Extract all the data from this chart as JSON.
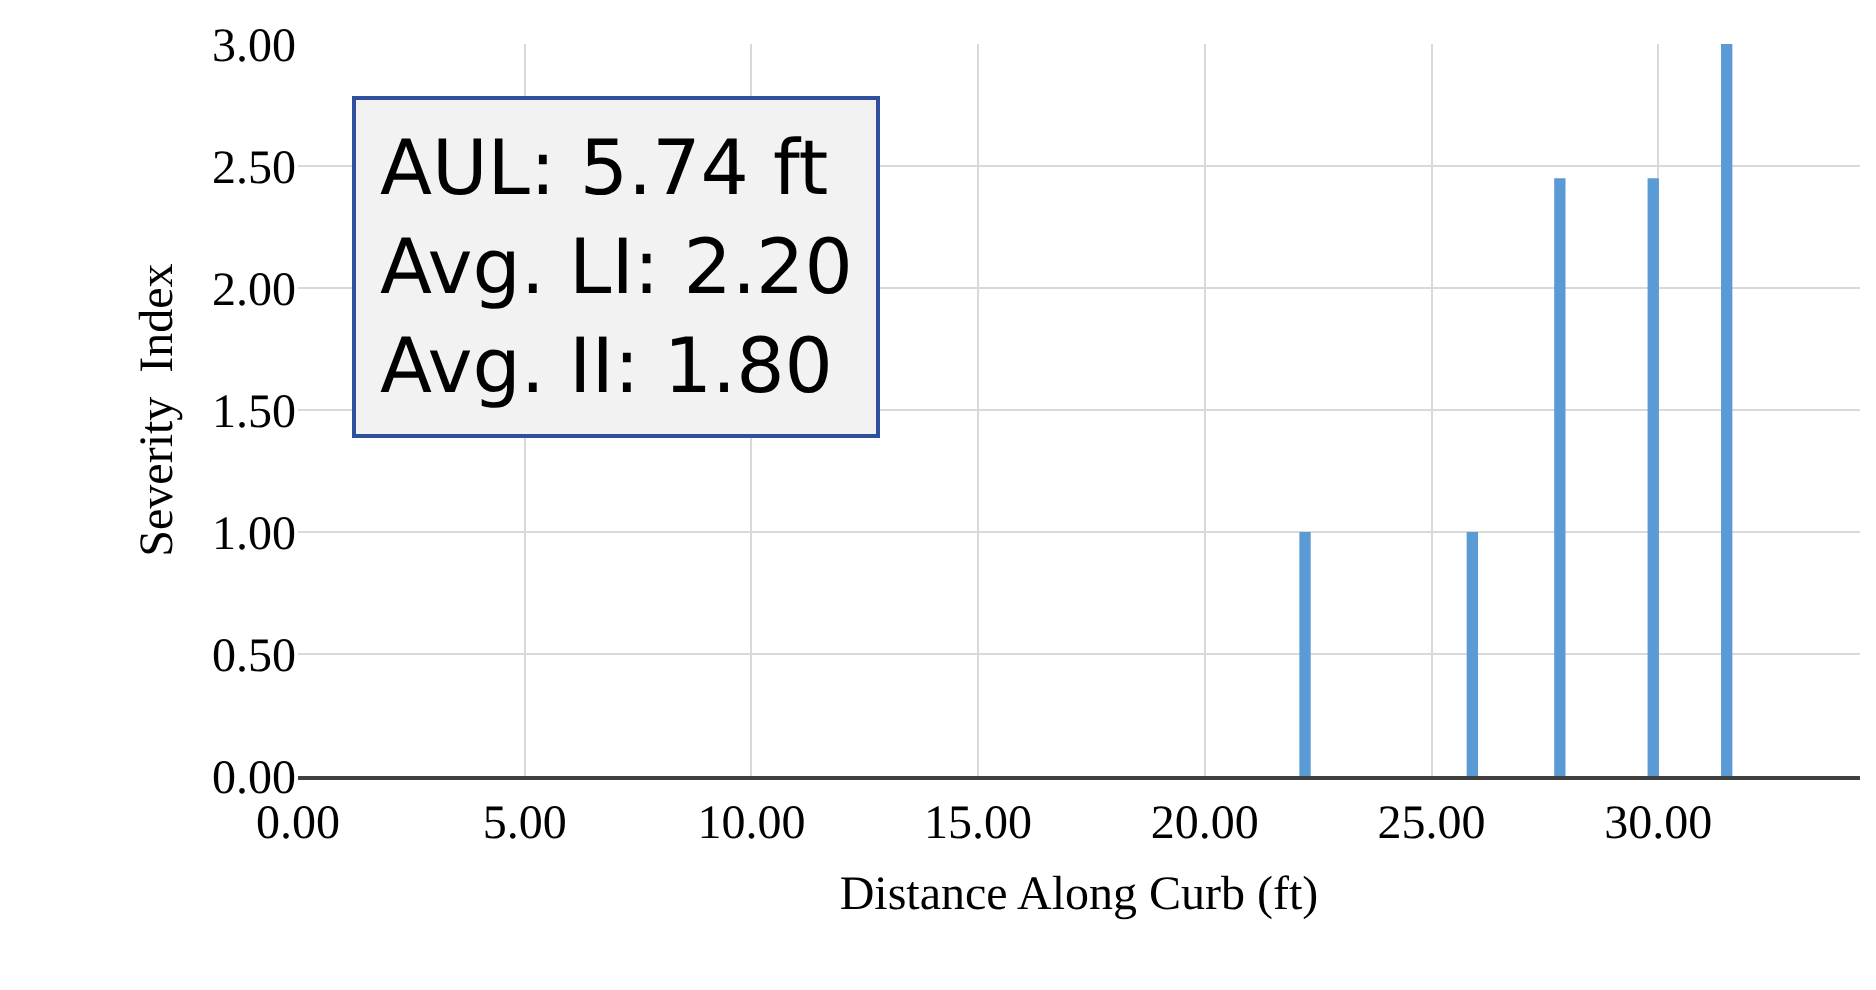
{
  "chart_data": {
    "type": "bar",
    "xlabel": "Distance Along Curb (ft)",
    "ylabel": "Severity  Index",
    "x": [
      22.21,
      25.9,
      27.83,
      29.89,
      31.51
    ],
    "values": [
      1.0,
      1.0,
      2.45,
      2.45,
      3.0
    ],
    "color": "#5b9bd5",
    "xlim": [
      0,
      34.45
    ],
    "xticks": [
      {
        "value": 0,
        "label": "0.00"
      },
      {
        "value": 5,
        "label": "5.00"
      },
      {
        "value": 10,
        "label": "10.00"
      },
      {
        "value": 15,
        "label": "15.00"
      },
      {
        "value": 20,
        "label": "20.00"
      },
      {
        "value": 25,
        "label": "25.00"
      },
      {
        "value": 30,
        "label": "30.00"
      }
    ],
    "ylim": [
      0,
      3
    ],
    "yticks": [
      {
        "value": 0,
        "label": "0.00"
      },
      {
        "value": 0.5,
        "label": "0.50"
      },
      {
        "value": 1,
        "label": "1.00"
      },
      {
        "value": 1.5,
        "label": "1.50"
      },
      {
        "value": 2,
        "label": "2.00"
      },
      {
        "value": 2.5,
        "label": "2.50"
      },
      {
        "value": 3,
        "label": "3.00"
      }
    ],
    "grid": true,
    "annotations": [
      "AUL: 5.74 ft",
      "Avg. LI: 2.20",
      "Avg. II: 1.80"
    ]
  }
}
